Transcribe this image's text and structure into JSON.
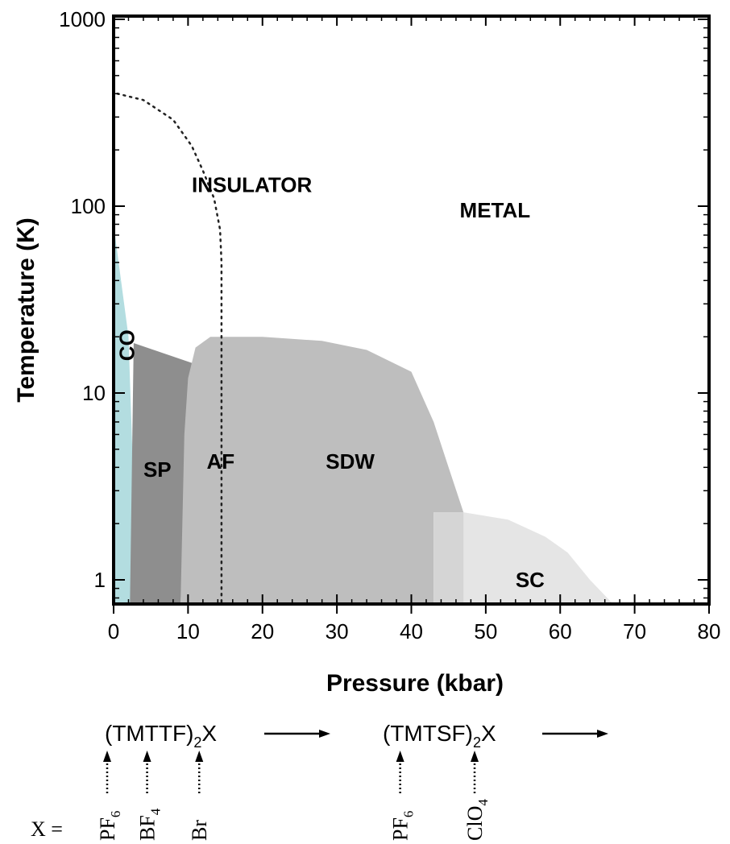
{
  "chart_data": {
    "type": "area",
    "title": "",
    "xlabel": "Pressure (kbar)",
    "ylabel": "Temperature (K)",
    "xlim": [
      0,
      80
    ],
    "ylim": [
      0.75,
      1000
    ],
    "yscale": "log",
    "x_ticks": [
      0,
      10,
      20,
      30,
      40,
      50,
      60,
      70,
      80
    ],
    "y_ticks": [
      1,
      10,
      100,
      1000
    ],
    "grid": false,
    "colors": {
      "CO": "#b3dde0",
      "SP": "#8e8e8e",
      "AF": "#bebebe",
      "SDW": "#bebebe",
      "SC": "#e5e5e5",
      "SC_overlap": "#d5d5d5"
    },
    "regions": [
      {
        "name": "CO",
        "label": "CO",
        "points": [
          [
            0,
            0.75
          ],
          [
            0,
            80
          ],
          [
            1,
            40
          ],
          [
            2,
            20
          ],
          [
            3.2,
            0.75
          ]
        ]
      },
      {
        "name": "SP",
        "label": "SP",
        "points": [
          [
            2.2,
            0.75
          ],
          [
            2.7,
            18.5
          ],
          [
            10.5,
            14.5
          ],
          [
            9,
            0.75
          ]
        ]
      },
      {
        "name": "SDW",
        "label": "SDW",
        "points": [
          [
            9,
            0.75
          ],
          [
            9.5,
            6
          ],
          [
            10,
            12
          ],
          [
            11,
            17.5
          ],
          [
            13,
            20
          ],
          [
            20,
            20
          ],
          [
            28,
            19
          ],
          [
            34,
            17
          ],
          [
            40,
            13
          ],
          [
            43,
            7
          ],
          [
            45,
            4
          ],
          [
            47,
            2.3
          ],
          [
            43,
            2.3
          ],
          [
            43,
            0.75
          ]
        ]
      },
      {
        "name": "SC",
        "label": "SC",
        "points": [
          [
            43,
            0.75
          ],
          [
            43,
            2.3
          ],
          [
            47,
            2.3
          ],
          [
            53,
            2.1
          ],
          [
            58,
            1.7
          ],
          [
            61,
            1.4
          ],
          [
            64,
            1.0
          ],
          [
            67,
            0.75
          ]
        ]
      }
    ],
    "region_labels": [
      {
        "text": "INSULATOR",
        "x": 10.5,
        "y": 130
      },
      {
        "text": "METAL",
        "x": 46.5,
        "y": 95
      },
      {
        "text": "CO",
        "x": 1.8,
        "y": 18
      },
      {
        "text": "SP",
        "x": 4,
        "y": 3.9
      },
      {
        "text": "AF",
        "x": 12.5,
        "y": 4.3
      },
      {
        "text": "SDW",
        "x": 28.5,
        "y": 4.3
      },
      {
        "text": "SC",
        "x": 54,
        "y": 1.0
      }
    ],
    "dotted_boundary": [
      [
        0.5,
        400
      ],
      [
        4,
        370
      ],
      [
        8,
        290
      ],
      [
        10.5,
        210
      ],
      [
        12,
        155
      ],
      [
        13.5,
        110
      ],
      [
        14.3,
        75
      ],
      [
        14.5,
        50
      ],
      [
        14.5,
        25
      ],
      [
        14.5,
        0.75
      ]
    ],
    "compounds": [
      {
        "formula_main": "(TMTTF)",
        "sub": "2",
        "suffix": "X",
        "start_x": 0
      },
      {
        "formula_main": "(TMTSF)",
        "sub": "2",
        "suffix": "X",
        "start_x": 36
      }
    ],
    "anion_prefix": "X =",
    "anions": [
      {
        "main": "PF",
        "sub": "6",
        "x": 0
      },
      {
        "main": "BF",
        "sub": "4",
        "x": 4.5
      },
      {
        "main": "Br",
        "sub": "",
        "x": 11.5
      },
      {
        "main": "PF",
        "sub": "6",
        "x": 38.5
      },
      {
        "main": "ClO",
        "sub": "4",
        "x": 48.5
      }
    ]
  }
}
